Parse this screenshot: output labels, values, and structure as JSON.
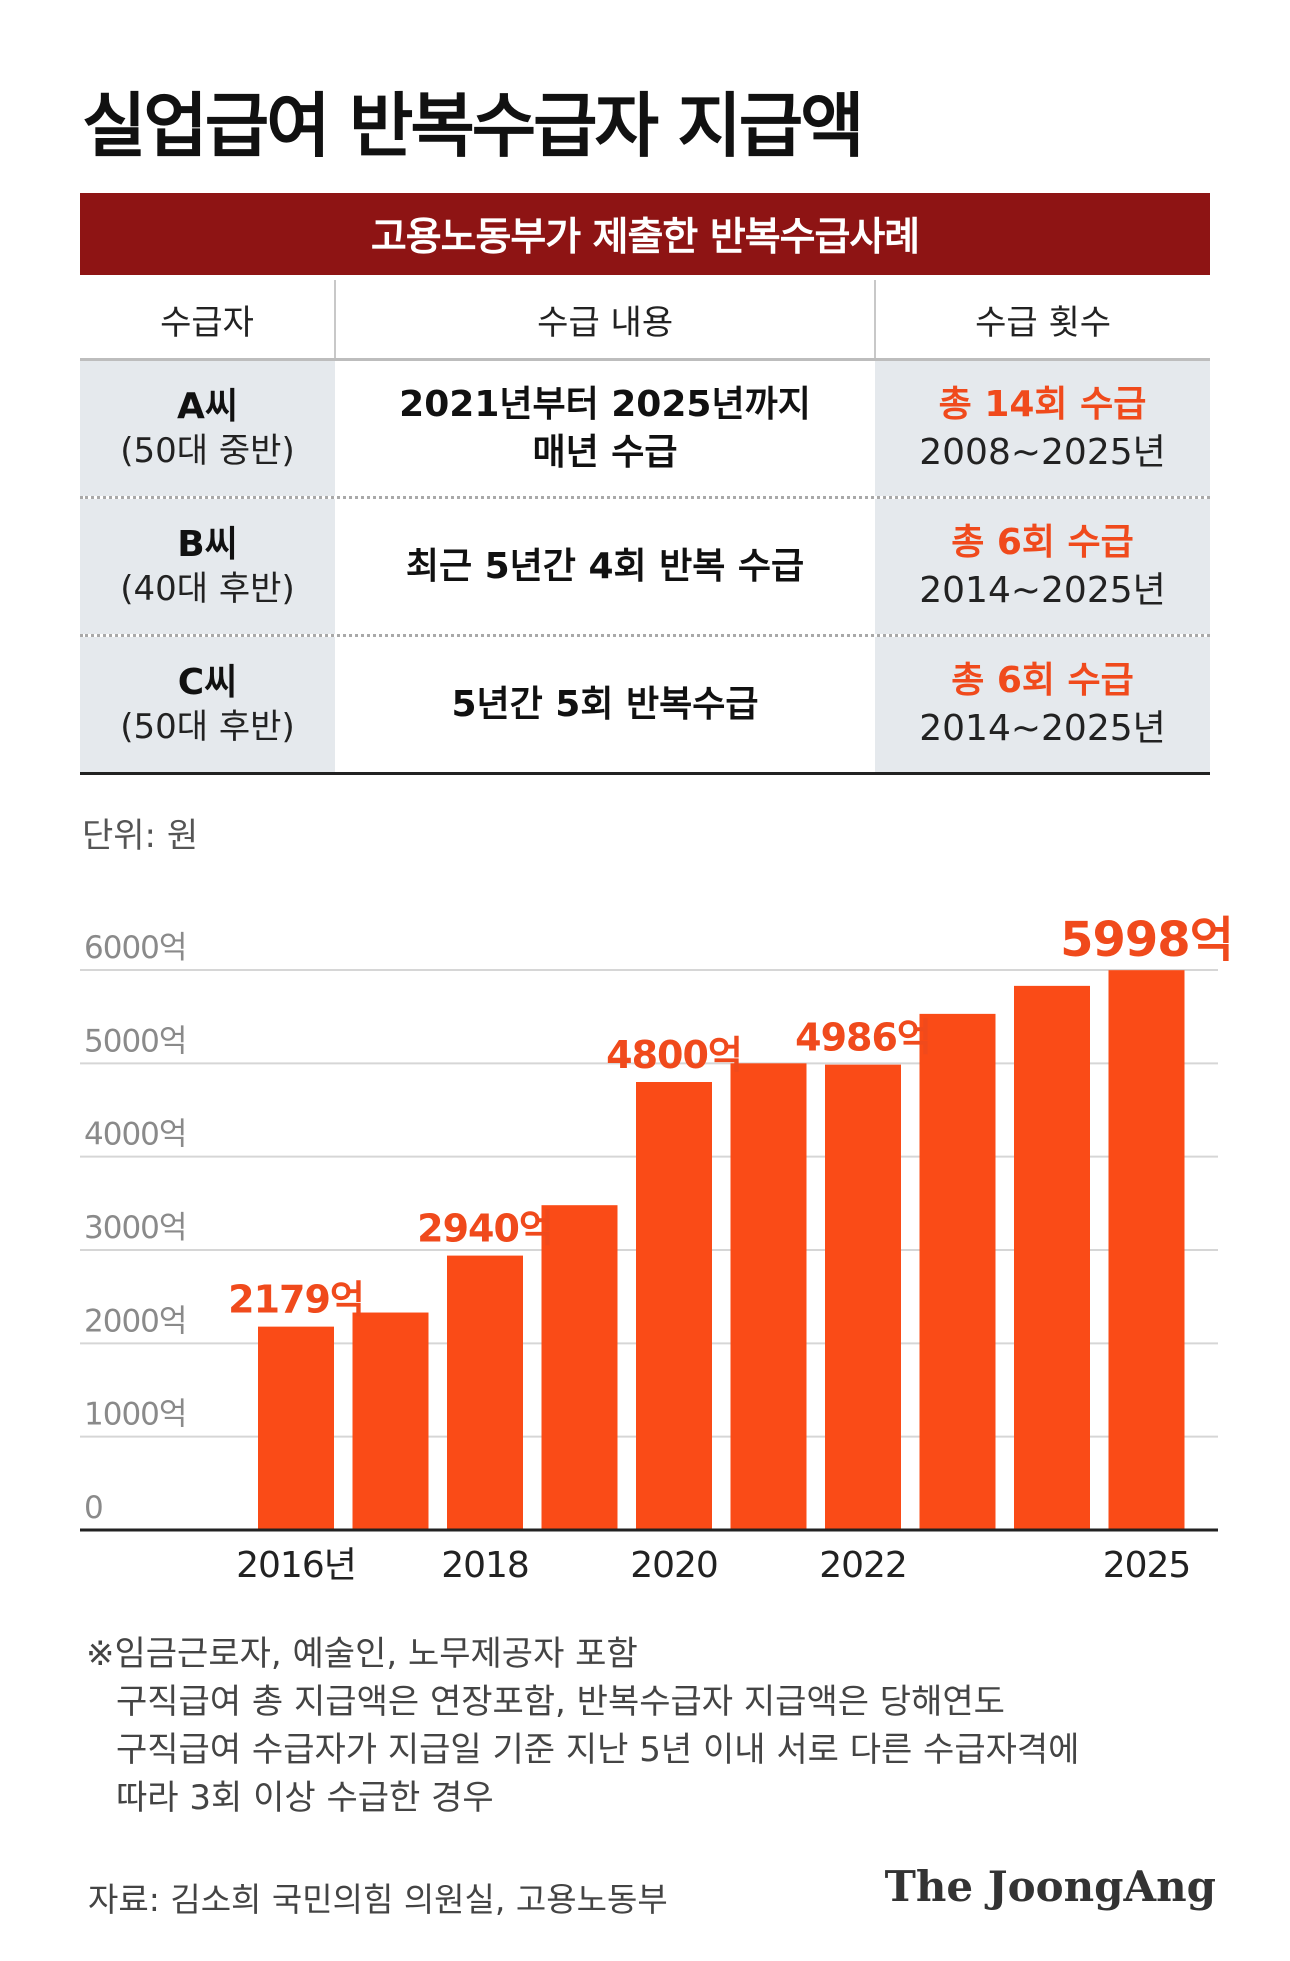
{
  "title": "실업급여 반복수급자 지급액",
  "table": {
    "header": "고용노동부가 제출한 반복수급사례",
    "columns": [
      "수급자",
      "수급 내용",
      "수급 횟수"
    ],
    "rows": [
      {
        "name": "A씨",
        "age": "(50대 중반)",
        "content": [
          "2021년부터 2025년까지",
          "매년 수급"
        ],
        "count": "총 14회 수급",
        "years": "2008~2025년"
      },
      {
        "name": "B씨",
        "age": "(40대 후반)",
        "content": [
          "최근 5년간 4회 반복 수급"
        ],
        "count": "총 6회 수급",
        "years": "2014~2025년"
      },
      {
        "name": "C씨",
        "age": "(50대 후반)",
        "content": [
          "5년간 5회 반복수급"
        ],
        "count": "총 6회 수급",
        "years": "2014~2025년"
      }
    ]
  },
  "unit": "단위: 원",
  "chart_data": {
    "type": "bar",
    "categories": [
      "2016",
      "2017",
      "2018",
      "2019",
      "2020",
      "2021",
      "2022",
      "2023",
      "2024",
      "2025"
    ],
    "values": [
      2179,
      2330,
      2940,
      3480,
      4800,
      5000,
      4986,
      5530,
      5830,
      5998
    ],
    "value_labels": [
      "2179억",
      "",
      "2940억",
      "",
      "4800억",
      "",
      "4986억",
      "",
      "",
      "5998억"
    ],
    "x_tick_labels": [
      "2016년",
      "",
      "2018",
      "",
      "2020",
      "",
      "2022",
      "",
      "",
      "2025"
    ],
    "y_ticks": [
      0,
      1000,
      2000,
      3000,
      4000,
      5000,
      6000
    ],
    "y_tick_labels": [
      "0",
      "1000억",
      "2000억",
      "3000억",
      "4000억",
      "5000억",
      "6000억"
    ],
    "ylim": [
      0,
      6000
    ],
    "grid": true,
    "colors": {
      "bar": "#fa4b17",
      "label": "#f04a1c",
      "grid": "#d6d6d6",
      "axis": "#222222",
      "tick": "#8a8a8a"
    }
  },
  "footnote": [
    "※임금근로자, 예술인, 노무제공자 포함",
    "구직급여 총 지급액은 연장포함, 반복수급자 지급액은 당해연도",
    "구직급여 수급자가 지급일 기준 지난 5년 이내 서로 다른 수급자격에",
    "따라 3회 이상 수급한 경우"
  ],
  "source": "자료: 김소희 국민의힘 의원실, 고용노동부",
  "brand": "The JoongAng"
}
